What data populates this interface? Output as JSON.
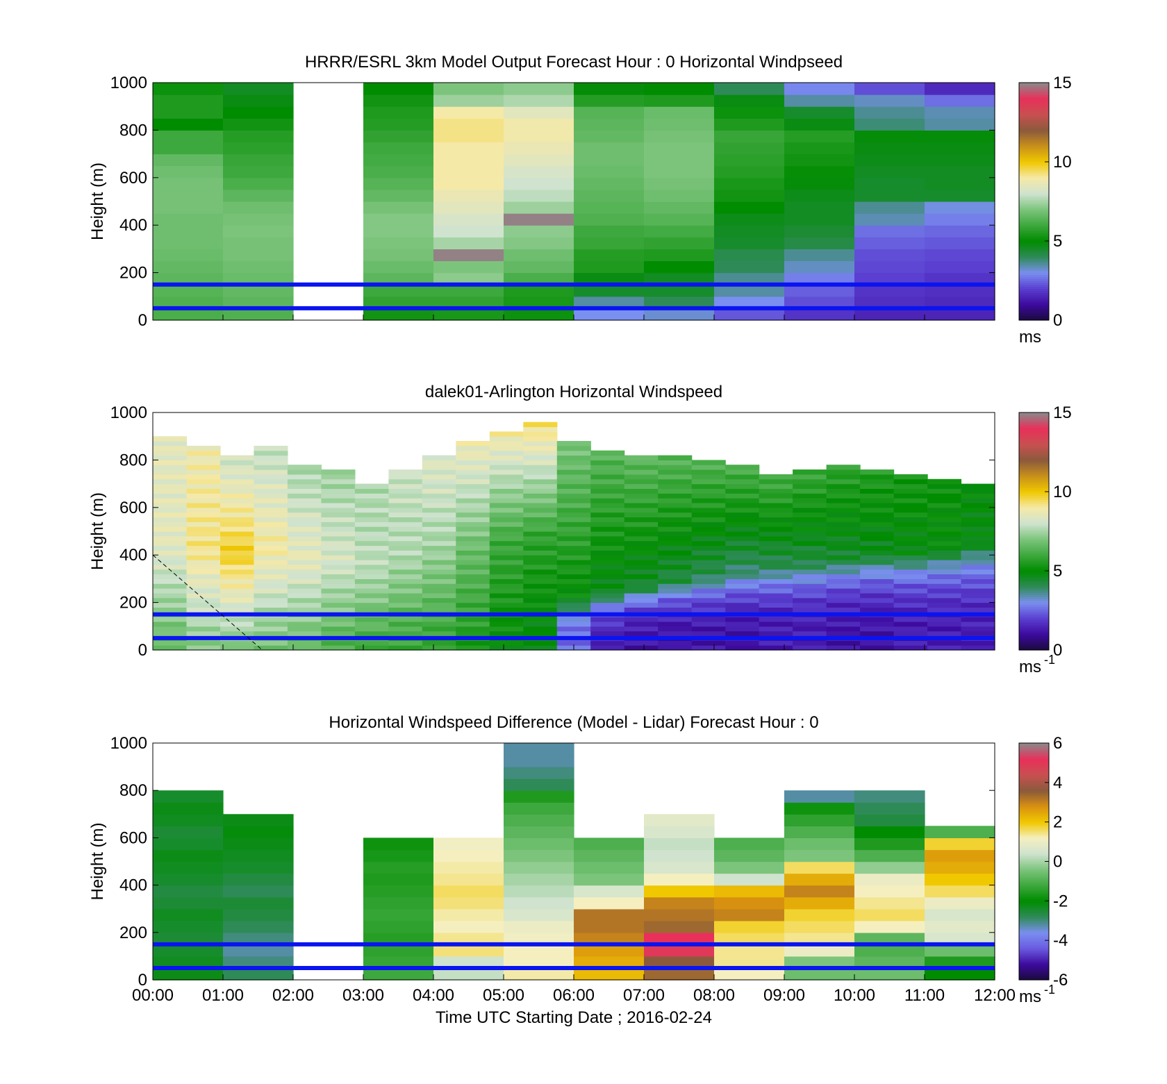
{
  "colormaps": {
    "speed": [
      "#1a0a3d",
      "#3d0a9e",
      "#5a3fd0",
      "#7a8ff0",
      "#2e8b57",
      "#008c00",
      "#3da83d",
      "#7cc47c",
      "#cfe3cf",
      "#f5e9a8",
      "#f0c800",
      "#c8901a",
      "#8b5a3c",
      "#c85050",
      "#e8305a",
      "#8a8a8a"
    ],
    "diff": [
      "#1a0a3d",
      "#3d0a9e",
      "#6a5ae0",
      "#7a8ff0",
      "#2e8b57",
      "#008c00",
      "#3da83d",
      "#7cc47c",
      "#cfe3cf",
      "#f5efc0",
      "#f0c800",
      "#d89010",
      "#8b5a3c",
      "#c85050",
      "#e8305a",
      "#8a8a8a"
    ]
  },
  "chart_data": [
    {
      "type": "heatmap",
      "title": "HRRR/ESRL 3km Model Output   Forecast Hour : 0 Horizontal Windpseed",
      "ylabel": "Height (m)",
      "xlabel": "",
      "ylim": [
        0,
        1000
      ],
      "yticks": [
        "1000",
        "800",
        "600",
        "400",
        "200",
        "0"
      ],
      "xlim": [
        "00:00",
        "12:00"
      ],
      "xticks": [],
      "blue_lines_m": [
        150,
        50
      ],
      "colorbar": {
        "range": [
          0,
          15
        ],
        "ticks": [
          "15",
          "10",
          "5",
          "0"
        ],
        "unit": "ms",
        "unit_sup": ""
      },
      "columns": [
        {
          "x": "00:00",
          "values": [
            6.2,
            6.3,
            6.4,
            6.5,
            6.6,
            6.7,
            6.8,
            6.8,
            6.8,
            6.9,
            6.9,
            6.9,
            6.8,
            6.6,
            6.0,
            6.0,
            5.0,
            5.5,
            5.5,
            5.2
          ]
        },
        {
          "x": "01:00",
          "values": [
            6.3,
            6.5,
            6.6,
            6.7,
            6.8,
            6.9,
            6.9,
            7.0,
            6.9,
            6.8,
            6.5,
            6.2,
            6.0,
            5.9,
            5.7,
            5.6,
            5.3,
            5.0,
            4.8,
            4.6
          ]
        },
        {
          "x": "02:00",
          "values": null
        },
        {
          "x": "03:00",
          "values": [
            5.3,
            5.8,
            6.0,
            6.5,
            6.7,
            6.9,
            7.0,
            7.1,
            7.1,
            6.9,
            6.6,
            6.4,
            6.2,
            6.1,
            6.0,
            5.8,
            5.6,
            5.5,
            5.3,
            5.0
          ]
        },
        {
          "x": "04:00",
          "values": [
            5.4,
            5.8,
            6.0,
            7.2,
            7.0,
            14.9,
            7.5,
            8.0,
            8.2,
            8.5,
            8.7,
            9.0,
            9.0,
            9.0,
            9.0,
            9.2,
            9.2,
            9.0,
            7.4,
            7.0
          ]
        },
        {
          "x": "05:00",
          "values": [
            5.2,
            5.4,
            5.5,
            6.2,
            6.6,
            6.8,
            7.1,
            7.2,
            14.9,
            7.4,
            7.8,
            8.0,
            8.2,
            8.5,
            8.7,
            8.9,
            8.9,
            8.5,
            7.6,
            7.2
          ]
        },
        {
          "x": "06:00",
          "values": [
            3.0,
            3.5,
            4.5,
            4.8,
            5.5,
            5.6,
            5.9,
            6.0,
            6.3,
            6.4,
            6.5,
            6.6,
            6.7,
            6.8,
            6.8,
            6.6,
            6.5,
            6.4,
            5.6,
            4.9
          ]
        },
        {
          "x": "07:00",
          "values": [
            3.2,
            4.0,
            4.5,
            4.6,
            5.0,
            5.5,
            5.8,
            6.1,
            6.4,
            6.6,
            6.8,
            6.9,
            7.0,
            7.0,
            7.0,
            6.9,
            6.8,
            6.7,
            5.5,
            5.0
          ]
        },
        {
          "x": "08:00",
          "values": [
            2.3,
            3.0,
            3.5,
            3.6,
            4.0,
            4.1,
            4.5,
            4.6,
            4.7,
            5.0,
            5.3,
            5.4,
            5.6,
            5.7,
            5.8,
            5.9,
            5.5,
            5.2,
            4.8,
            4.0
          ]
        },
        {
          "x": "09:00",
          "values": [
            1.8,
            2.2,
            2.4,
            2.8,
            3.3,
            3.6,
            4.2,
            4.4,
            4.6,
            4.6,
            4.7,
            4.9,
            5.1,
            5.3,
            5.4,
            5.6,
            4.8,
            4.5,
            3.5,
            2.9
          ]
        },
        {
          "x": "10:00",
          "values": [
            1.5,
            1.7,
            1.8,
            2.0,
            2.1,
            2.2,
            2.4,
            2.6,
            3.4,
            3.6,
            4.5,
            4.5,
            4.6,
            4.7,
            4.8,
            4.9,
            3.8,
            3.6,
            3.3,
            2.2
          ]
        },
        {
          "x": "11:00",
          "values": [
            1.5,
            1.6,
            1.7,
            1.8,
            2.0,
            2.1,
            2.3,
            2.5,
            2.8,
            3.1,
            4.5,
            4.6,
            4.6,
            4.7,
            4.8,
            4.9,
            3.5,
            3.4,
            2.6,
            1.6
          ]
        }
      ]
    },
    {
      "type": "heatmap",
      "title": "dalek01-Arlington  Horizontal Windspeed",
      "ylabel": "Height (m)",
      "xlabel": "",
      "ylim": [
        0,
        1000
      ],
      "yticks": [
        "1000",
        "800",
        "600",
        "400",
        "200",
        "0"
      ],
      "xlim": [
        "00:00",
        "12:00"
      ],
      "xticks": [],
      "blue_lines_m": [
        150,
        50
      ],
      "colorbar": {
        "range": [
          0,
          15
        ],
        "ticks": [
          "15",
          "10",
          "5",
          "0"
        ],
        "unit": "ms",
        "unit_sup": "-1"
      },
      "columns_per_hour": 2,
      "profiles": [
        {
          "top_m": 900,
          "low": 6.5,
          "mid": 8.5,
          "high": 8.5,
          "bl_top_m": 0
        },
        {
          "top_m": 860,
          "low": 7.0,
          "mid": 9.2,
          "high": 8.8,
          "bl_top_m": 0
        },
        {
          "top_m": 820,
          "low": 7.0,
          "mid": 9.8,
          "high": 8.0,
          "bl_top_m": 0
        },
        {
          "top_m": 860,
          "low": 6.8,
          "mid": 9.0,
          "high": 7.8,
          "bl_top_m": 0
        },
        {
          "top_m": 780,
          "low": 6.5,
          "mid": 8.6,
          "high": 7.5,
          "bl_top_m": 0
        },
        {
          "top_m": 760,
          "low": 6.2,
          "mid": 8.2,
          "high": 7.4,
          "bl_top_m": 0
        },
        {
          "top_m": 700,
          "low": 6.0,
          "mid": 7.8,
          "high": 7.6,
          "bl_top_m": 0
        },
        {
          "top_m": 760,
          "low": 5.8,
          "mid": 7.6,
          "high": 8.0,
          "bl_top_m": 0
        },
        {
          "top_m": 820,
          "low": 5.6,
          "mid": 7.4,
          "high": 8.4,
          "bl_top_m": 0
        },
        {
          "top_m": 880,
          "low": 5.4,
          "mid": 6.8,
          "high": 8.8,
          "bl_top_m": 0
        },
        {
          "top_m": 920,
          "low": 5.0,
          "mid": 6.0,
          "high": 9.0,
          "bl_top_m": 0
        },
        {
          "top_m": 960,
          "low": 4.6,
          "mid": 5.8,
          "high": 9.4,
          "bl_top_m": 0
        },
        {
          "top_m": 880,
          "low": 2.5,
          "mid": 5.0,
          "high": 7.0,
          "bl_top_m": 220
        },
        {
          "top_m": 840,
          "low": 1.5,
          "mid": 4.6,
          "high": 6.5,
          "bl_top_m": 240
        },
        {
          "top_m": 820,
          "low": 1.2,
          "mid": 4.4,
          "high": 6.6,
          "bl_top_m": 260
        },
        {
          "top_m": 820,
          "low": 1.1,
          "mid": 4.2,
          "high": 6.5,
          "bl_top_m": 280
        },
        {
          "top_m": 800,
          "low": 1.2,
          "mid": 4.0,
          "high": 6.4,
          "bl_top_m": 300
        },
        {
          "top_m": 780,
          "low": 1.2,
          "mid": 3.8,
          "high": 6.3,
          "bl_top_m": 320
        },
        {
          "top_m": 740,
          "low": 1.3,
          "mid": 4.0,
          "high": 6.2,
          "bl_top_m": 340
        },
        {
          "top_m": 760,
          "low": 1.3,
          "mid": 4.2,
          "high": 6.0,
          "bl_top_m": 360
        },
        {
          "top_m": 780,
          "low": 1.2,
          "mid": 4.4,
          "high": 5.8,
          "bl_top_m": 380
        },
        {
          "top_m": 760,
          "low": 1.2,
          "mid": 4.6,
          "high": 5.6,
          "bl_top_m": 400
        },
        {
          "top_m": 740,
          "low": 1.3,
          "mid": 4.8,
          "high": 5.4,
          "bl_top_m": 410
        },
        {
          "top_m": 720,
          "low": 1.3,
          "mid": 5.0,
          "high": 5.2,
          "bl_top_m": 430
        },
        {
          "top_m": 700,
          "low": 1.4,
          "mid": 4.8,
          "high": 5.0,
          "bl_top_m": 450
        }
      ]
    },
    {
      "type": "heatmap",
      "title": "Horizontal Windspeed Difference (Model - Lidar) Forecast Hour : 0",
      "ylabel": "Height (m)",
      "xlabel": "Time UTC  Starting Date ; 2016-02-24",
      "ylim": [
        0,
        1000
      ],
      "yticks": [
        "1000",
        "800",
        "600",
        "400",
        "200",
        "0"
      ],
      "xlim": [
        "00:00",
        "12:00"
      ],
      "xticks": [
        "00:00",
        "01:00",
        "02:00",
        "03:00",
        "04:00",
        "05:00",
        "06:00",
        "07:00",
        "08:00",
        "09:00",
        "10:00",
        "11:00",
        "12:00"
      ],
      "blue_lines_m": [
        150,
        50
      ],
      "colorbar": {
        "range": [
          -6,
          6
        ],
        "ticks": [
          "6",
          "4",
          "2",
          "0",
          "-2",
          "-4",
          "-6"
        ],
        "unit": "ms",
        "unit_sup": "-1"
      },
      "columns": [
        {
          "x": "00:00",
          "top_m": 790,
          "values": [
            -2.2,
            -2.3,
            -2.4,
            -2.5,
            -2.4,
            -2.3,
            -2.5,
            -2.6,
            -2.4,
            -2.3,
            -2.2,
            -2.4,
            -2.5,
            -2.3,
            -2.2,
            -2.4,
            null,
            null,
            null,
            null
          ]
        },
        {
          "x": "01:00",
          "top_m": 690,
          "values": [
            -2.8,
            -3.0,
            -3.2,
            -3.0,
            -2.8,
            -2.6,
            -2.5,
            -2.8,
            -2.6,
            -2.4,
            -2.3,
            -2.2,
            -2.1,
            -2.2,
            null,
            null,
            null,
            null,
            null,
            null
          ]
        },
        {
          "x": "02:00",
          "top_m": 0,
          "values": null
        },
        {
          "x": "03:00",
          "top_m": 570,
          "values": [
            -1.2,
            -1.3,
            -1.4,
            -1.5,
            -1.4,
            -1.3,
            -1.4,
            -1.5,
            -1.6,
            -1.5,
            -1.7,
            -1.8,
            null,
            null,
            null,
            null,
            null,
            null,
            null,
            null
          ]
        },
        {
          "x": "04:00",
          "top_m": 600,
          "values": [
            0.3,
            0.4,
            1.5,
            1.4,
            1.2,
            1.3,
            1.5,
            1.6,
            1.4,
            1.3,
            1.2,
            1.1,
            null,
            null,
            null,
            null,
            null,
            null,
            null,
            null
          ]
        },
        {
          "x": "05:00",
          "top_m": 1000,
          "values": [
            1.3,
            1.2,
            1.2,
            1.1,
            1.0,
            0.6,
            0.4,
            0.2,
            0.0,
            -0.2,
            -0.4,
            -0.6,
            -0.8,
            -1.0,
            -1.2,
            -1.6,
            -2.8,
            -3.0,
            -3.2,
            -3.2
          ]
        },
        {
          "x": "06:00",
          "top_m": 600,
          "values": [
            2.2,
            2.4,
            2.6,
            3.0,
            3.2,
            3.2,
            1.2,
            0.6,
            -0.4,
            -0.6,
            -0.8,
            -1.0,
            null,
            null,
            null,
            null,
            null,
            null,
            null,
            null
          ]
        },
        {
          "x": "07:00",
          "top_m": 710,
          "values": [
            3.4,
            3.6,
            5.0,
            5.2,
            3.4,
            3.2,
            3.0,
            2.0,
            1.2,
            0.6,
            0.4,
            0.3,
            0.6,
            0.8,
            null,
            null,
            null,
            null,
            null,
            null
          ]
        },
        {
          "x": "08:00",
          "top_m": 600,
          "values": [
            1.2,
            1.4,
            1.4,
            1.6,
            1.8,
            3.0,
            2.8,
            2.2,
            0.4,
            -0.4,
            -0.8,
            -1.0,
            null,
            null,
            null,
            null,
            null,
            null,
            null,
            null
          ]
        },
        {
          "x": "09:00",
          "top_m": 790,
          "values": [
            -0.6,
            -0.4,
            1.0,
            1.4,
            1.6,
            1.8,
            2.4,
            3.0,
            2.4,
            1.6,
            -0.4,
            -0.6,
            -1.0,
            -1.4,
            -1.8,
            -3.2,
            null,
            null,
            null,
            null
          ]
        },
        {
          "x": "10:00",
          "top_m": 790,
          "values": [
            -0.6,
            -0.8,
            -1.0,
            -0.8,
            1.2,
            1.6,
            1.4,
            1.2,
            1.0,
            -0.2,
            -1.0,
            -1.6,
            -2.0,
            -2.6,
            -2.8,
            -3.0,
            null,
            null,
            null,
            null
          ]
        },
        {
          "x": "11:00",
          "top_m": 630,
          "values": [
            -2.0,
            -1.6,
            -0.6,
            0.6,
            0.8,
            0.6,
            1.0,
            1.6,
            2.0,
            2.4,
            2.6,
            1.8,
            -1.0,
            null,
            null,
            null,
            null,
            null,
            null,
            null
          ]
        }
      ]
    }
  ]
}
